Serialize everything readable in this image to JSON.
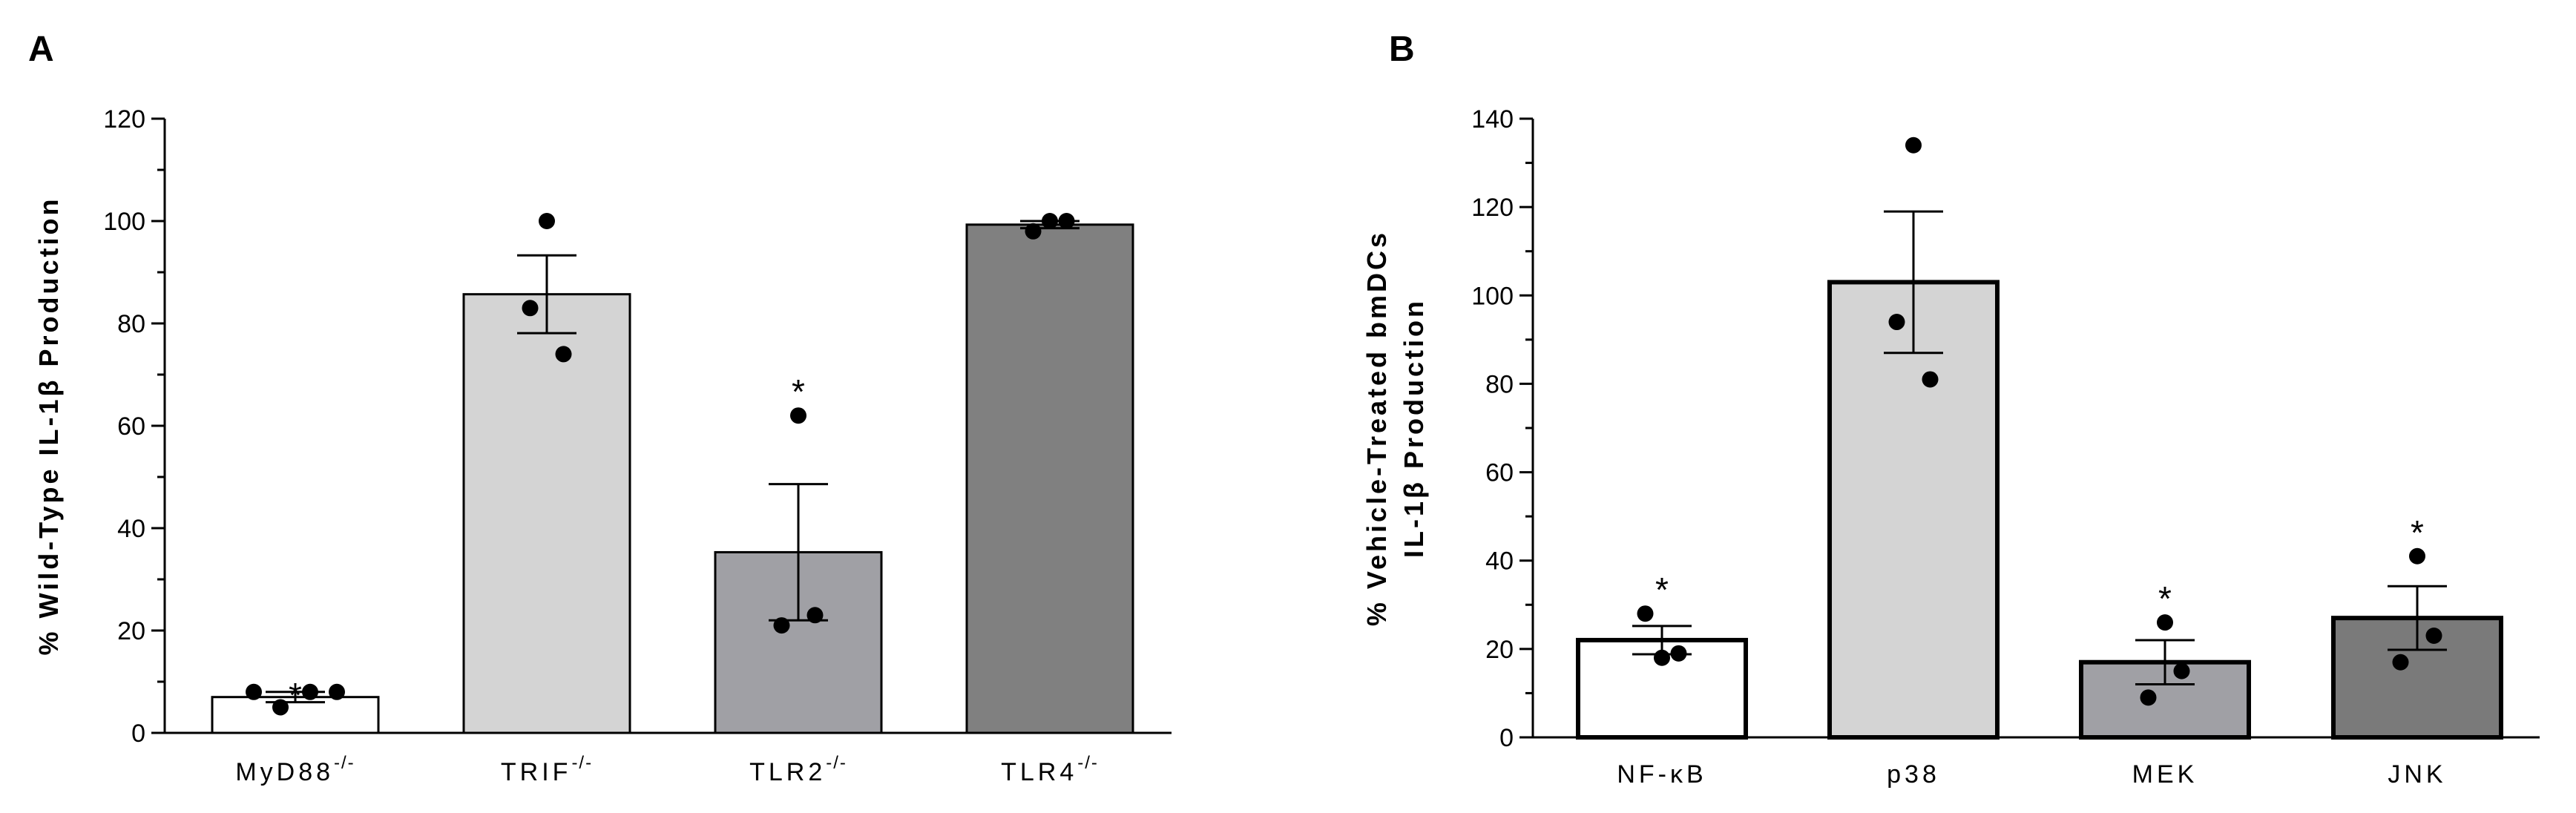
{
  "chart_data": [
    {
      "type": "bar",
      "panel_label": "A",
      "ylabel": "% Wild-Type IL-1β Production",
      "ylim": [
        0,
        120
      ],
      "yticks": [
        "0",
        "20",
        "40",
        "60",
        "80",
        "100",
        "120"
      ],
      "categories": [
        {
          "base": "MyD88",
          "sup": "-/-",
          "value": 7,
          "error": 1,
          "points": [
            8,
            5,
            8,
            8
          ],
          "significant": true,
          "color": "#ffffff"
        },
        {
          "base": "TRIF",
          "sup": "-/-",
          "value": 85.7,
          "error": 7.6,
          "points": [
            100,
            83,
            74
          ],
          "significant": false,
          "color": "#d4d4d4"
        },
        {
          "base": "TLR2",
          "sup": "-/-",
          "value": 35.3,
          "error": 13.3,
          "points": [
            62,
            21,
            23
          ],
          "significant": true,
          "color": "#a0a0a5"
        },
        {
          "base": "TLR4",
          "sup": "-/-",
          "value": 99.3,
          "error": 0.7,
          "points": [
            100,
            98,
            100
          ],
          "significant": false,
          "color": "#808080"
        }
      ],
      "significance_marker": "*"
    },
    {
      "type": "bar",
      "panel_label": "B",
      "ylabel": [
        "% Vehicle-Treated bmDCs",
        "IL-1β Production"
      ],
      "ylim": [
        0,
        140
      ],
      "yticks": [
        "0",
        "20",
        "40",
        "60",
        "80",
        "100",
        "120",
        "140"
      ],
      "categories": [
        {
          "base": "NF-κB",
          "sup": "",
          "value": 22,
          "error": 3.2,
          "points": [
            18,
            28,
            19
          ],
          "significant": true,
          "color": "#ffffff"
        },
        {
          "base": "p38",
          "sup": "",
          "value": 103,
          "error": 16,
          "points": [
            134,
            94,
            81
          ],
          "significant": false,
          "color": "#d4d4d4"
        },
        {
          "base": "MEK",
          "sup": "",
          "value": 17,
          "error": 5,
          "points": [
            26,
            9,
            15
          ],
          "significant": true,
          "color": "#a0a0a5"
        },
        {
          "base": "JNK",
          "sup": "",
          "value": 27,
          "error": 7.2,
          "points": [
            41,
            17,
            23
          ],
          "significant": true,
          "color": "#7a7a7a"
        }
      ],
      "significance_marker": "*"
    }
  ]
}
